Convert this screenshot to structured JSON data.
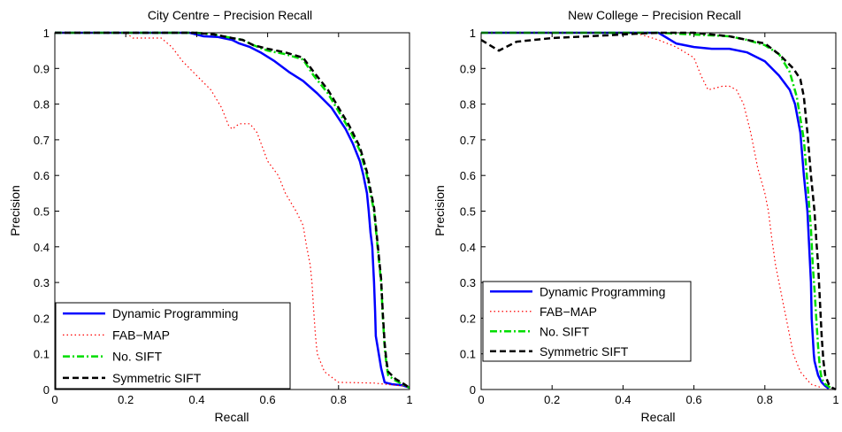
{
  "chart_data": [
    {
      "type": "line",
      "title": "City Centre − Precision Recall",
      "xlabel": "Recall",
      "ylabel": "Precision",
      "xlim": [
        0,
        1
      ],
      "ylim": [
        0,
        1
      ],
      "xticks": [
        0,
        0.2,
        0.4,
        0.6,
        0.8,
        1
      ],
      "yticks": [
        0,
        0.1,
        0.2,
        0.3,
        0.4,
        0.5,
        0.6,
        0.7,
        0.8,
        0.9,
        1
      ],
      "xtick_labels": [
        "0",
        "0.2",
        "0.4",
        "0.6",
        "0.8",
        "1"
      ],
      "ytick_labels": [
        "0",
        "0.1",
        "0.2",
        "0.3",
        "0.4",
        "0.5",
        "0.6",
        "0.7",
        "0.8",
        "0.9",
        "1"
      ],
      "grid": false,
      "legend_position": "lower-left",
      "series": [
        {
          "name": "Dynamic Programming",
          "color": "#0000ff",
          "style": "solid",
          "x": [
            0,
            0.1,
            0.2,
            0.3,
            0.38,
            0.42,
            0.46,
            0.5,
            0.52,
            0.55,
            0.58,
            0.62,
            0.66,
            0.7,
            0.74,
            0.78,
            0.8,
            0.82,
            0.84,
            0.86,
            0.87,
            0.88,
            0.885,
            0.89,
            0.895,
            0.9,
            0.903,
            0.905,
            0.91,
            0.915,
            0.92,
            0.93,
            0.95,
            0.98,
            1.0
          ],
          "y": [
            1,
            1,
            1,
            1,
            1,
            0.99,
            0.988,
            0.98,
            0.97,
            0.96,
            0.945,
            0.92,
            0.89,
            0.865,
            0.83,
            0.79,
            0.76,
            0.73,
            0.69,
            0.64,
            0.6,
            0.55,
            0.5,
            0.44,
            0.4,
            0.3,
            0.22,
            0.15,
            0.12,
            0.09,
            0.06,
            0.02,
            0.015,
            0.012,
            0.005
          ]
        },
        {
          "name": "FAB−MAP",
          "color": "#ff0000",
          "style": "dotted",
          "x": [
            0,
            0.1,
            0.2,
            0.22,
            0.26,
            0.3,
            0.33,
            0.36,
            0.4,
            0.44,
            0.47,
            0.49,
            0.5,
            0.52,
            0.55,
            0.57,
            0.6,
            0.63,
            0.65,
            0.68,
            0.7,
            0.71,
            0.72,
            0.725,
            0.73,
            0.735,
            0.74,
            0.76,
            0.8,
            0.9,
            0.93,
            0.96,
            1.0
          ],
          "y": [
            1,
            1,
            1,
            0.985,
            0.985,
            0.985,
            0.96,
            0.92,
            0.88,
            0.84,
            0.79,
            0.74,
            0.73,
            0.745,
            0.745,
            0.72,
            0.64,
            0.6,
            0.55,
            0.5,
            0.46,
            0.4,
            0.35,
            0.3,
            0.22,
            0.15,
            0.1,
            0.05,
            0.02,
            0.018,
            0.015,
            0.012,
            0.008
          ]
        },
        {
          "name": "No. SIFT",
          "color": "#00dd00",
          "style": "dashdot",
          "x": [
            0,
            0.1,
            0.2,
            0.3,
            0.4,
            0.45,
            0.5,
            0.53,
            0.56,
            0.6,
            0.65,
            0.7,
            0.73,
            0.77,
            0.8,
            0.83,
            0.86,
            0.88,
            0.89,
            0.9,
            0.905,
            0.91,
            0.915,
            0.92,
            0.925,
            0.93,
            0.935,
            0.94,
            0.96,
            0.98,
            1.0
          ],
          "y": [
            1,
            1,
            1,
            1,
            1,
            0.995,
            0.985,
            0.98,
            0.965,
            0.95,
            0.94,
            0.925,
            0.88,
            0.83,
            0.78,
            0.73,
            0.67,
            0.6,
            0.55,
            0.5,
            0.45,
            0.4,
            0.35,
            0.3,
            0.2,
            0.12,
            0.07,
            0.04,
            0.025,
            0.015,
            0.005
          ]
        },
        {
          "name": "Symmetric SIFT",
          "color": "#000000",
          "style": "dashed",
          "x": [
            0,
            0.1,
            0.2,
            0.3,
            0.4,
            0.45,
            0.5,
            0.53,
            0.56,
            0.6,
            0.65,
            0.7,
            0.73,
            0.77,
            0.8,
            0.83,
            0.86,
            0.88,
            0.89,
            0.9,
            0.905,
            0.91,
            0.915,
            0.92,
            0.925,
            0.93,
            0.935,
            0.94,
            0.96,
            0.98,
            1.0
          ],
          "y": [
            1,
            1,
            1,
            1,
            1,
            0.995,
            0.985,
            0.98,
            0.965,
            0.955,
            0.945,
            0.93,
            0.89,
            0.84,
            0.79,
            0.74,
            0.68,
            0.61,
            0.56,
            0.51,
            0.46,
            0.41,
            0.36,
            0.31,
            0.21,
            0.13,
            0.08,
            0.05,
            0.03,
            0.018,
            0.005
          ]
        }
      ]
    },
    {
      "type": "line",
      "title": "New College − Precision Recall",
      "xlabel": "Recall",
      "ylabel": "Precision",
      "xlim": [
        0,
        1
      ],
      "ylim": [
        0,
        1
      ],
      "xticks": [
        0,
        0.2,
        0.4,
        0.6,
        0.8,
        1
      ],
      "yticks": [
        0,
        0.1,
        0.2,
        0.3,
        0.4,
        0.5,
        0.6,
        0.7,
        0.8,
        0.9,
        1
      ],
      "xtick_labels": [
        "0",
        "0.2",
        "0.4",
        "0.6",
        "0.8",
        "1"
      ],
      "ytick_labels": [
        "0",
        "0.1",
        "0.2",
        "0.3",
        "0.4",
        "0.5",
        "0.6",
        "0.7",
        "0.8",
        "0.9",
        "1"
      ],
      "grid": false,
      "legend_position": "lower-left",
      "series": [
        {
          "name": "Dynamic Programming",
          "color": "#0000ff",
          "style": "solid",
          "x": [
            0,
            0.1,
            0.2,
            0.3,
            0.4,
            0.5,
            0.55,
            0.6,
            0.65,
            0.7,
            0.75,
            0.8,
            0.84,
            0.87,
            0.885,
            0.9,
            0.91,
            0.92,
            0.925,
            0.93,
            0.932,
            0.935,
            0.938,
            0.94,
            0.945,
            0.95,
            0.96,
            0.97,
            0.98
          ],
          "y": [
            1,
            1,
            1,
            1,
            1,
            1,
            0.97,
            0.96,
            0.955,
            0.955,
            0.945,
            0.92,
            0.88,
            0.84,
            0.8,
            0.72,
            0.6,
            0.5,
            0.4,
            0.3,
            0.2,
            0.15,
            0.1,
            0.08,
            0.06,
            0.04,
            0.02,
            0.01,
            0.003
          ]
        },
        {
          "name": "FAB−MAP",
          "color": "#ff0000",
          "style": "dotted",
          "x": [
            0,
            0.1,
            0.2,
            0.3,
            0.4,
            0.45,
            0.5,
            0.55,
            0.6,
            0.62,
            0.64,
            0.66,
            0.68,
            0.7,
            0.72,
            0.74,
            0.76,
            0.78,
            0.8,
            0.81,
            0.82,
            0.83,
            0.84,
            0.85,
            0.86,
            0.87,
            0.88,
            0.9,
            0.93,
            0.96
          ],
          "y": [
            1,
            1,
            1,
            1,
            1,
            0.995,
            0.98,
            0.96,
            0.93,
            0.88,
            0.84,
            0.845,
            0.85,
            0.85,
            0.84,
            0.8,
            0.72,
            0.62,
            0.55,
            0.5,
            0.42,
            0.35,
            0.3,
            0.25,
            0.2,
            0.15,
            0.1,
            0.05,
            0.015,
            0.005
          ]
        },
        {
          "name": "No. SIFT",
          "color": "#00dd00",
          "style": "dashdot",
          "x": [
            0,
            0.1,
            0.2,
            0.3,
            0.4,
            0.5,
            0.6,
            0.7,
            0.75,
            0.8,
            0.84,
            0.87,
            0.89,
            0.91,
            0.92,
            0.93,
            0.935,
            0.94,
            0.945,
            0.95,
            0.955,
            0.96,
            0.97,
            0.98,
            0.99
          ],
          "y": [
            1,
            1,
            1,
            1,
            1,
            1,
            0.995,
            0.99,
            0.98,
            0.965,
            0.94,
            0.89,
            0.82,
            0.7,
            0.58,
            0.45,
            0.35,
            0.28,
            0.2,
            0.12,
            0.06,
            0.03,
            0.015,
            0.008,
            0.003
          ]
        },
        {
          "name": "Symmetric SIFT",
          "color": "#000000",
          "style": "dashed",
          "x": [
            0,
            0.05,
            0.1,
            0.2,
            0.3,
            0.4,
            0.45,
            0.5,
            0.6,
            0.7,
            0.75,
            0.8,
            0.84,
            0.88,
            0.9,
            0.91,
            0.92,
            0.93,
            0.94,
            0.945,
            0.95,
            0.955,
            0.96,
            0.965,
            0.97,
            0.98,
            0.99,
            1.0
          ],
          "y": [
            0.98,
            0.95,
            0.975,
            0.985,
            0.99,
            0.995,
            0.998,
            1,
            1,
            0.99,
            0.98,
            0.97,
            0.94,
            0.9,
            0.87,
            0.82,
            0.72,
            0.6,
            0.5,
            0.42,
            0.35,
            0.25,
            0.15,
            0.08,
            0.04,
            0.015,
            0.005,
            0.0
          ]
        }
      ]
    }
  ]
}
